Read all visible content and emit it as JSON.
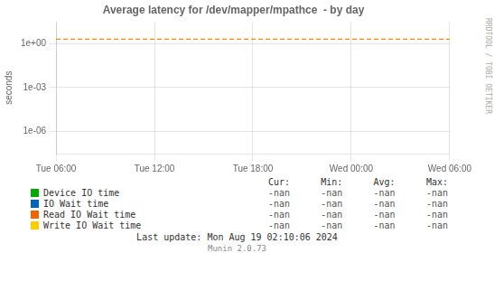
{
  "chart_data": {
    "type": "line",
    "title": "Average latency for /dev/mapper/mpathce  - by day",
    "y_label": "seconds",
    "categories": [
      "Tue 06:00",
      "Tue 12:00",
      "Tue 18:00",
      "Wed 00:00",
      "Wed 06:00"
    ],
    "series": [
      {
        "name": "Device IO time",
        "color": "#00aa00",
        "values": [
          null,
          null,
          null,
          null,
          null
        ],
        "summary": [
          "-nan",
          "-nan",
          "-nan",
          "-nan"
        ]
      },
      {
        "name": "IO Wait time",
        "color": "#0066bb",
        "values": [
          null,
          null,
          null,
          null,
          null
        ],
        "summary": [
          "-nan",
          "-nan",
          "-nan",
          "-nan"
        ]
      },
      {
        "name": "Read IO Wait time",
        "color": "#ee6600",
        "values": [
          null,
          null,
          null,
          null,
          null
        ],
        "summary": [
          "-nan",
          "-nan",
          "-nan",
          "-nan"
        ]
      },
      {
        "name": "Write IO Wait time",
        "color": "#ffcc00",
        "values": [
          null,
          null,
          null,
          null,
          null
        ],
        "summary": [
          "-nan",
          "-nan",
          "-nan",
          "-nan"
        ]
      },
      {
        "color": "#ff8800",
        "line_style": "dashed",
        "values": [
          2.0,
          2.0,
          2.0,
          2.0,
          2.0
        ]
      }
    ],
    "summary_columns": [
      "Cur:",
      "Min:",
      "Avg:",
      "Max:"
    ],
    "log": "y",
    "ylim": [
      3e-08,
      30.0
    ],
    "yticks": [
      {
        "value": 1e-06,
        "label": "1e-06"
      },
      {
        "value": 0.001,
        "label": "1e-03"
      },
      {
        "value": 1.0,
        "label": "1e+00"
      }
    ],
    "grid": true,
    "annotations": [
      "Last update: Mon Aug 19 02:10:06 2024",
      "Munin 2.0.73"
    ],
    "watermark": "RRDTOOL / TOBI OETIKER"
  }
}
